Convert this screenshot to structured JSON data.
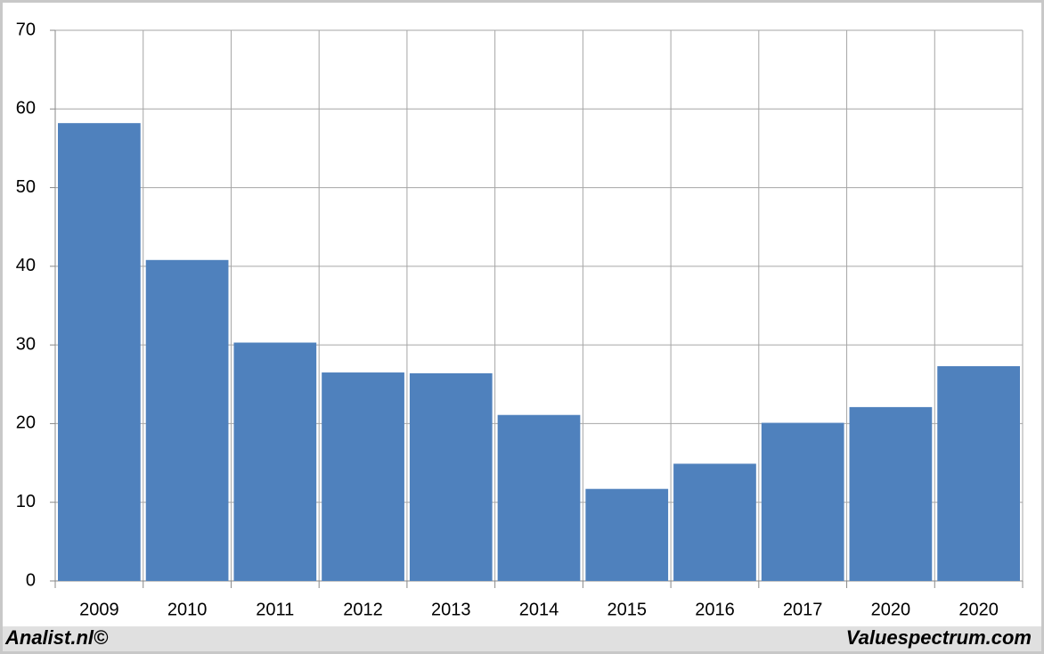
{
  "chart_data": {
    "type": "bar",
    "categories": [
      "2009",
      "2010",
      "2011",
      "2012",
      "2013",
      "2014",
      "2015",
      "2016",
      "2017",
      "2020",
      "2020"
    ],
    "values": [
      58.2,
      40.8,
      30.3,
      26.5,
      26.4,
      21.1,
      11.7,
      14.9,
      20.1,
      22.1,
      27.3
    ],
    "color": "#4f81bd",
    "ylim": [
      0,
      70
    ],
    "yticks": [
      0,
      10,
      20,
      30,
      40,
      50,
      60,
      70
    ],
    "grid": true
  },
  "footer": {
    "left": "Analist.nl©",
    "right": "Valuespectrum.com"
  }
}
